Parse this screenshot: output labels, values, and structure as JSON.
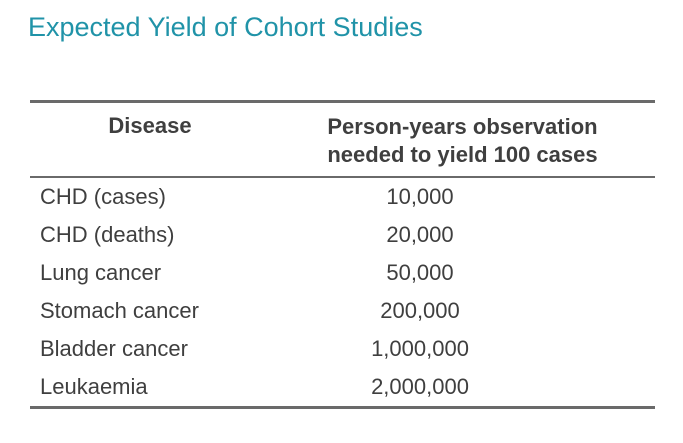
{
  "page": {
    "title": "Expected Yield of Cohort Studies"
  },
  "colors": {
    "title_accent": "#2093A8",
    "table_text": "#3F3F3F",
    "table_border": "#6A6A6A",
    "background": "#FFFFFF"
  },
  "table": {
    "headers": {
      "disease": "Disease",
      "value_line1": "Person-years observation",
      "value_line2": "needed to yield 100 cases"
    },
    "rows": [
      {
        "disease": "CHD (cases)",
        "value": "10,000"
      },
      {
        "disease": "CHD (deaths)",
        "value": "20,000"
      },
      {
        "disease": "Lung cancer",
        "value": "50,000"
      },
      {
        "disease": "Stomach cancer",
        "value": "200,000"
      },
      {
        "disease": "Bladder cancer",
        "value": "1,000,000"
      },
      {
        "disease": "Leukaemia",
        "value": "2,000,000"
      }
    ]
  }
}
